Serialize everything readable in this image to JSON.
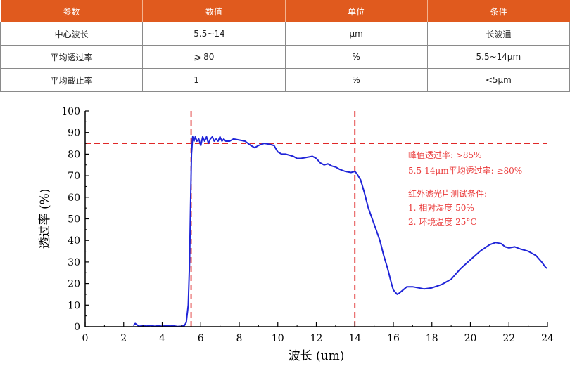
{
  "spec_table": {
    "headers": [
      "参数",
      "数值",
      "单位",
      "条件"
    ],
    "rows": [
      [
        "中心波长",
        "5.5~14",
        "μm",
        "长波通"
      ],
      [
        "平均透过率",
        "⩾ 80",
        "%",
        "5.5~14μm"
      ],
      [
        "平均截止率",
        "1",
        "%",
        "<5μm"
      ]
    ],
    "header_color": "#e05a1e"
  },
  "chart_data": {
    "type": "line",
    "xlabel": "波长 (um)",
    "ylabel": "透过率 (%)",
    "xlim": [
      0,
      24
    ],
    "ylim": [
      0,
      100
    ],
    "xticks": [
      "0",
      "2",
      "4",
      "6",
      "8",
      "10",
      "12",
      "14",
      "16",
      "18",
      "20",
      "22",
      "24"
    ],
    "yticks": [
      "0",
      "10",
      "20",
      "30",
      "40",
      "50",
      "60",
      "70",
      "80",
      "90",
      "100"
    ],
    "grid": false,
    "line_color": "#1f24d8",
    "reference_color": "#e02828",
    "reference_lines": {
      "vertical_x": [
        5.5,
        14
      ],
      "horizontal_y": [
        85
      ]
    },
    "annotations": [
      "峰值透过率: >85%",
      "5.5-14μm平均透过率: ≥80%",
      "红外滤光片测试条件:",
      "1. 相对湿度 50%",
      "2. 环境温度 25°C"
    ],
    "series": [
      {
        "x": [
          2.5,
          2.6,
          2.7,
          2.8,
          3.0,
          3.2,
          3.4,
          3.6,
          3.8,
          4.0,
          4.2,
          4.4,
          4.6,
          4.8,
          5.0,
          5.15,
          5.25,
          5.35,
          5.42,
          5.47,
          5.52,
          5.58,
          5.65,
          5.72,
          5.8,
          5.9,
          6.0,
          6.1,
          6.2,
          6.3,
          6.4,
          6.5,
          6.6,
          6.7,
          6.8,
          6.9,
          7.0,
          7.1,
          7.2,
          7.3,
          7.5,
          7.7,
          8.0,
          8.3,
          8.6,
          8.8,
          9.0,
          9.3,
          9.6,
          9.8,
          10.0,
          10.2,
          10.4,
          10.6,
          10.8,
          11.0,
          11.2,
          11.5,
          11.8,
          12.0,
          12.2,
          12.4,
          12.6,
          12.8,
          13.0,
          13.2,
          13.5,
          13.8,
          14.0,
          14.1,
          14.3,
          14.5,
          14.7,
          14.9,
          15.1,
          15.3,
          15.5,
          15.7,
          15.9,
          16.0,
          16.1,
          16.2,
          16.3,
          16.5,
          16.7,
          17.0,
          17.3,
          17.6,
          18.0,
          18.5,
          19.0,
          19.5,
          20.0,
          20.5,
          21.0,
          21.3,
          21.6,
          21.8,
          22.0,
          22.3,
          22.6,
          23.0,
          23.4,
          23.7,
          23.9,
          24.0
        ],
        "values": [
          0.5,
          1.5,
          0.8,
          0.2,
          0.4,
          0.3,
          0.6,
          0.2,
          0.4,
          0.2,
          0.5,
          0.3,
          0.4,
          0.1,
          0.2,
          0.5,
          2,
          10,
          30,
          55,
          80,
          88,
          86,
          88,
          86,
          87,
          84,
          88,
          86,
          88,
          85,
          87,
          88,
          86,
          87,
          86,
          88,
          86,
          87,
          86,
          86,
          87,
          86.5,
          86,
          84,
          83,
          84,
          85,
          84.5,
          84,
          81,
          80,
          80,
          79.5,
          79,
          78,
          78,
          78.5,
          79,
          78,
          76,
          75,
          75.5,
          74.5,
          74,
          73,
          72,
          71.5,
          72,
          71,
          68,
          62,
          55,
          50,
          45,
          40,
          33,
          27,
          20,
          17,
          16,
          15,
          15.5,
          17,
          18.5,
          18.5,
          18,
          17.5,
          18,
          19.5,
          22,
          27,
          31,
          35,
          38,
          39,
          38.5,
          37,
          36.5,
          37,
          36,
          35,
          33,
          30,
          27.5,
          27
        ]
      }
    ]
  }
}
